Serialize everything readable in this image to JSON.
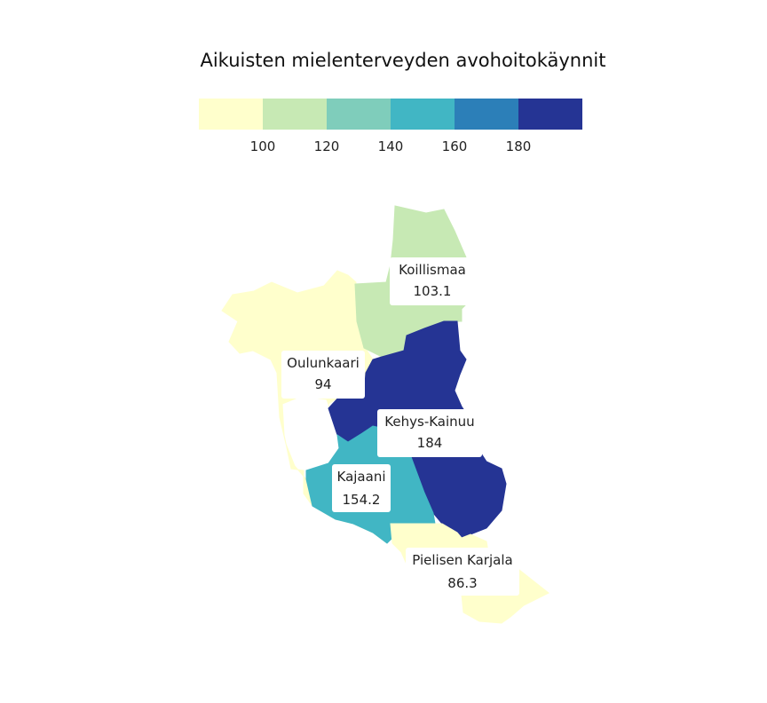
{
  "title": "Aikuisten mielenterveyden avohoitokäynnit",
  "legend": {
    "colors": [
      "#ffffcc",
      "#c7e9b4",
      "#7fcdbb",
      "#41b6c4",
      "#2c7fb8",
      "#253494"
    ],
    "ticks": [
      "100",
      "120",
      "140",
      "160",
      "180"
    ]
  },
  "regions": [
    {
      "name": "Koillismaa",
      "value": "103.1",
      "color": "#c7e9b4"
    },
    {
      "name": "Oulunkaari",
      "value": "94",
      "color": "#ffffcc"
    },
    {
      "name": "Kehys-Kainuu",
      "value": "184",
      "color": "#253494"
    },
    {
      "name": "Kajaani",
      "value": "154.2",
      "color": "#41b6c4"
    },
    {
      "name": "Pielisen Karjala",
      "value": "86.3",
      "color": "#ffffcc"
    }
  ]
}
